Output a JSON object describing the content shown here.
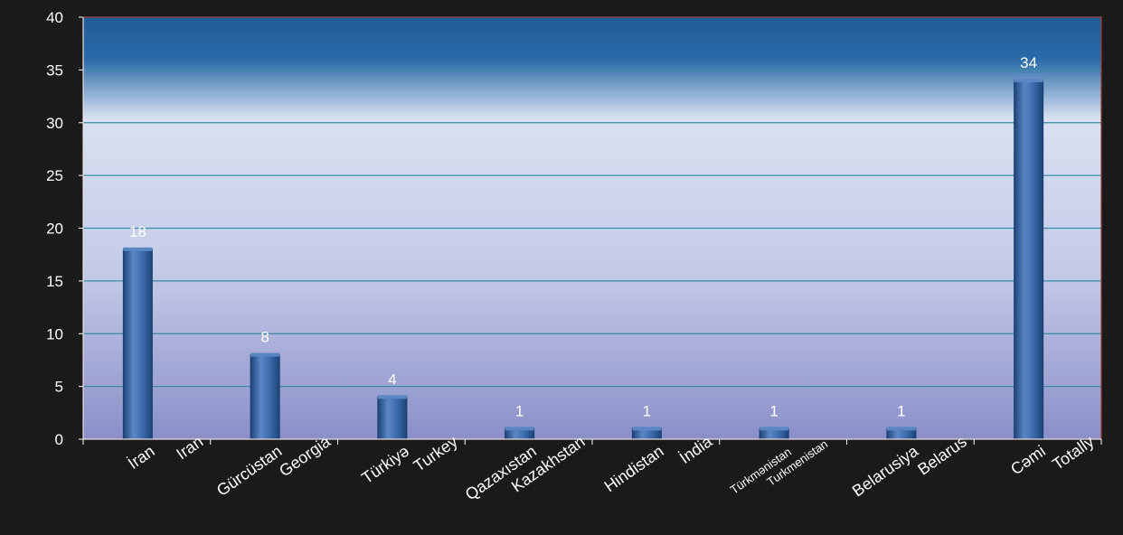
{
  "colors": {
    "frame": "#1a1a1a",
    "plot_top": "#1f5c99",
    "plot_mid": "#d8e1f1",
    "plot_bottom": "#8a8fc8",
    "bar": "#2f5f9e",
    "bar_light": "#5b86c4",
    "gridline": "#3a8aa8",
    "plot_border": "#9b3b2e",
    "text": "#ffffff"
  },
  "chart_data": {
    "type": "bar",
    "categories": [
      [
        "İran",
        "Iran"
      ],
      [
        "Gürcüstan",
        "Georgia"
      ],
      [
        "Türkiyə",
        "Turkey"
      ],
      [
        "Qazaxıstan",
        "Kazakhstan"
      ],
      [
        "Hindistan",
        "İndia"
      ],
      [
        "Türkmənistan",
        "Turkmenistan"
      ],
      [
        "Belarusiya",
        "Belarus"
      ],
      [
        "Cəmi",
        "Totally"
      ]
    ],
    "values": [
      18,
      8,
      4,
      1,
      1,
      1,
      1,
      34
    ],
    "data_labels": [
      "18",
      "8",
      "4",
      "1",
      "1",
      "1",
      "1",
      "34"
    ],
    "y_ticks": [
      "0",
      "5",
      "10",
      "15",
      "20",
      "25",
      "30",
      "35",
      "40"
    ],
    "ylim": [
      0,
      40
    ],
    "grid": true,
    "legend": "none",
    "title": "",
    "xlabel": "",
    "ylabel": ""
  }
}
